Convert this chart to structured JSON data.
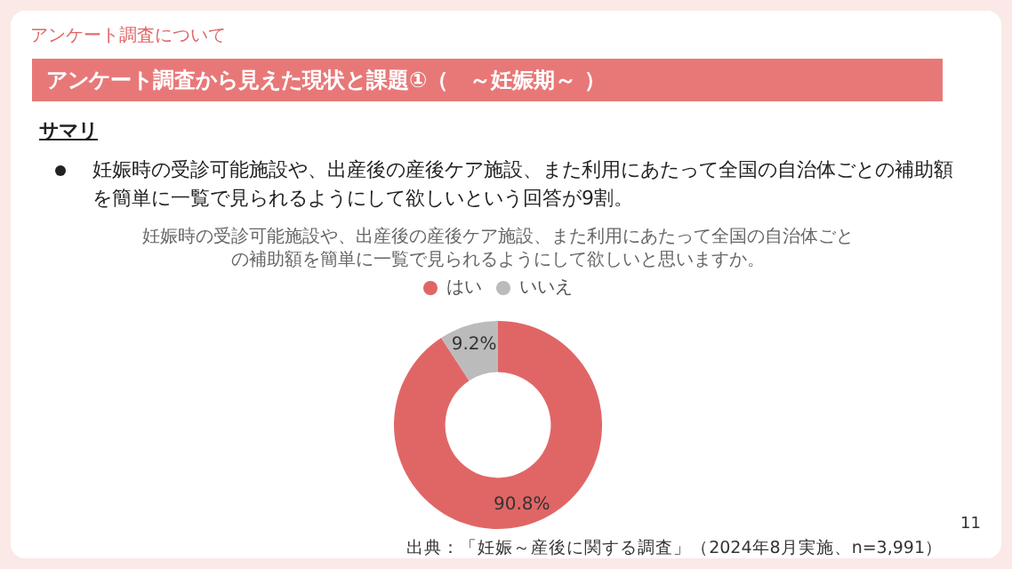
{
  "chart_data": {
    "type": "donut",
    "title": "妊娠時の受診可能施設や、出産後の産後ケア施設、また利用にあたって全国の自治体ごとの補助額を簡単に一覧で見られるようにして欲しいと思いますか。",
    "categories": [
      "はい",
      "いいえ"
    ],
    "values": [
      90.8,
      9.2
    ],
    "value_labels": [
      "90.8%",
      "9.2%"
    ],
    "colors": [
      "#e06666",
      "#bbbbbb"
    ],
    "legend": "top",
    "annotations": [
      "アンケート調査について",
      "アンケート調査から見えた現状と課題①（　～妊娠期～ ）",
      "サマリ",
      "妊娠時の受診可能施設や、出産後の産後ケア施設、また利用にあたって全国の自治体ごとの補助額を簡単に一覧で見られるようにして欲しいという回答が9割。",
      "出典：「妊娠～産後に関する調査」（2024年8月実施、n=3,991）",
      "11"
    ]
  }
}
